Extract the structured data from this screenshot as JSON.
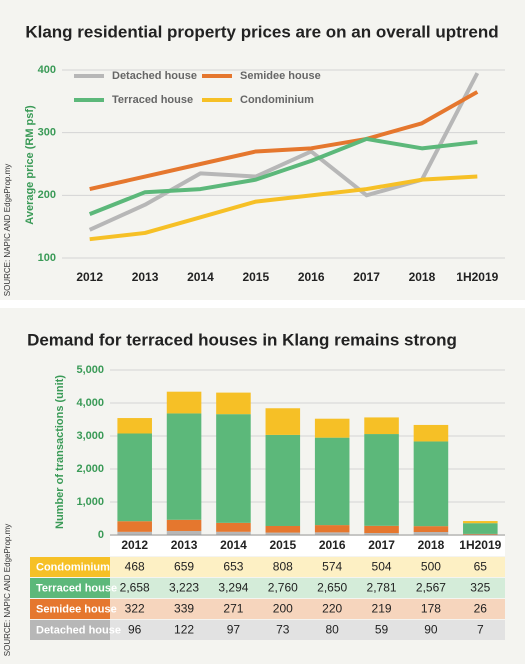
{
  "chart_data": [
    {
      "type": "line",
      "title": "Klang residential property prices are on an overall uptrend",
      "y_label": "Average price (RM psf)",
      "source": "SOURCE: NAPIC AND EdgeProp.my",
      "categories": [
        "2012",
        "2013",
        "2014",
        "2015",
        "2016",
        "2017",
        "2018",
        "1H2019"
      ],
      "ylim": [
        100,
        400
      ],
      "yticks": [
        100,
        200,
        300,
        400
      ],
      "grid": true,
      "series": [
        {
          "name": "Detached house",
          "color": "#b7b7b7",
          "values": [
            145,
            185,
            235,
            230,
            270,
            200,
            225,
            395
          ]
        },
        {
          "name": "Semidee house",
          "color": "#e5772e",
          "values": [
            210,
            230,
            250,
            270,
            275,
            290,
            315,
            365
          ]
        },
        {
          "name": "Terraced house",
          "color": "#5cb87a",
          "values": [
            170,
            205,
            210,
            225,
            255,
            290,
            275,
            285
          ]
        },
        {
          "name": "Condominium",
          "color": "#f6c026",
          "values": [
            130,
            140,
            165,
            190,
            200,
            210,
            225,
            230
          ]
        }
      ]
    },
    {
      "type": "stacked_bar",
      "title": "Demand for terraced houses in Klang remains strong",
      "y_label": "Number of transactions (unit)",
      "source": "SOURCE: NAPIC AND EdgeProp.my",
      "categories": [
        "2012",
        "2013",
        "2014",
        "2015",
        "2016",
        "2017",
        "2018",
        "1H2019"
      ],
      "ylim": [
        0,
        5000
      ],
      "yticks": [
        0,
        {
          "value": 1000,
          "label": "1,000"
        },
        {
          "value": 2000,
          "label": "2,000"
        },
        {
          "value": 3000,
          "label": "3,000"
        },
        {
          "value": 4000,
          "label": "4,000"
        },
        {
          "value": 5000,
          "label": "5,000"
        }
      ],
      "grid": true,
      "series": [
        {
          "name": "Detached house",
          "color": "#b7b7b7",
          "values": [
            96,
            122,
            97,
            73,
            80,
            59,
            90,
            7
          ]
        },
        {
          "name": "Semidee house",
          "color": "#e5772e",
          "values": [
            322,
            339,
            271,
            200,
            220,
            219,
            178,
            26
          ]
        },
        {
          "name": "Terraced house",
          "color": "#5cb87a",
          "values": [
            2658,
            3223,
            3294,
            2760,
            2650,
            2781,
            2567,
            325
          ],
          "value_labels": [
            "2,658",
            "3,223",
            "3,294",
            "2,760",
            "2,650",
            "2,781",
            "2,567",
            "325"
          ]
        },
        {
          "name": "Condominium",
          "color": "#f6c026",
          "values": [
            468,
            659,
            653,
            808,
            574,
            504,
            500,
            65
          ]
        }
      ]
    }
  ]
}
